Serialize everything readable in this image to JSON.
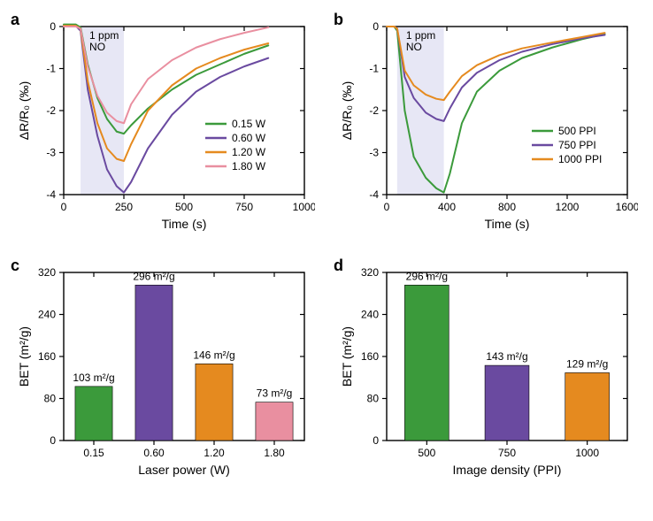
{
  "panel_a": {
    "label": "a",
    "type": "line",
    "shade_label": "1 ppm\nNO",
    "shade_x": [
      70,
      250
    ],
    "xlabel": "Time (s)",
    "ylabel": "ΔR/R₀ (‰)",
    "xlim": [
      0,
      1000
    ],
    "ylim": [
      -4,
      0
    ],
    "xticks": [
      0,
      250,
      500,
      750,
      1000
    ],
    "yticks": [
      -4,
      -3,
      -2,
      -1,
      0
    ],
    "series": [
      {
        "name": "0.15 W",
        "color": "#3b9a3b",
        "points": [
          [
            0,
            0.05
          ],
          [
            50,
            0.05
          ],
          [
            70,
            -0.02
          ],
          [
            100,
            -0.9
          ],
          [
            140,
            -1.7
          ],
          [
            180,
            -2.2
          ],
          [
            220,
            -2.5
          ],
          [
            250,
            -2.55
          ],
          [
            280,
            -2.35
          ],
          [
            350,
            -1.95
          ],
          [
            450,
            -1.5
          ],
          [
            550,
            -1.15
          ],
          [
            650,
            -0.9
          ],
          [
            750,
            -0.65
          ],
          [
            850,
            -0.45
          ]
        ]
      },
      {
        "name": "0.60 W",
        "color": "#6a4aa0",
        "points": [
          [
            0,
            0.02
          ],
          [
            50,
            0.02
          ],
          [
            70,
            -0.1
          ],
          [
            100,
            -1.5
          ],
          [
            140,
            -2.6
          ],
          [
            180,
            -3.4
          ],
          [
            220,
            -3.8
          ],
          [
            250,
            -3.95
          ],
          [
            280,
            -3.7
          ],
          [
            350,
            -2.9
          ],
          [
            450,
            -2.1
          ],
          [
            550,
            -1.55
          ],
          [
            650,
            -1.2
          ],
          [
            750,
            -0.95
          ],
          [
            850,
            -0.75
          ]
        ]
      },
      {
        "name": "1.20 W",
        "color": "#e58a1f",
        "points": [
          [
            0,
            0.02
          ],
          [
            50,
            0.02
          ],
          [
            70,
            -0.05
          ],
          [
            100,
            -1.3
          ],
          [
            140,
            -2.3
          ],
          [
            180,
            -2.9
          ],
          [
            220,
            -3.15
          ],
          [
            250,
            -3.2
          ],
          [
            280,
            -2.8
          ],
          [
            350,
            -2.0
          ],
          [
            450,
            -1.4
          ],
          [
            550,
            -1.0
          ],
          [
            650,
            -0.75
          ],
          [
            750,
            -0.55
          ],
          [
            850,
            -0.4
          ]
        ]
      },
      {
        "name": "1.80 W",
        "color": "#e98fa0",
        "points": [
          [
            0,
            0.0
          ],
          [
            50,
            0.0
          ],
          [
            70,
            -0.05
          ],
          [
            100,
            -0.95
          ],
          [
            140,
            -1.65
          ],
          [
            180,
            -2.05
          ],
          [
            220,
            -2.25
          ],
          [
            250,
            -2.3
          ],
          [
            280,
            -1.85
          ],
          [
            350,
            -1.25
          ],
          [
            450,
            -0.8
          ],
          [
            550,
            -0.5
          ],
          [
            650,
            -0.3
          ],
          [
            750,
            -0.15
          ],
          [
            850,
            -0.02
          ]
        ]
      }
    ],
    "legend_title": null
  },
  "panel_b": {
    "label": "b",
    "type": "line",
    "shade_label": "1 ppm\nNO",
    "shade_x": [
      70,
      380
    ],
    "xlabel": "Time (s)",
    "ylabel": "ΔR/R₀ (‰)",
    "xlim": [
      0,
      1600
    ],
    "ylim": [
      -4,
      0
    ],
    "xticks": [
      0,
      400,
      800,
      1200,
      1600
    ],
    "yticks": [
      -4,
      -3,
      -2,
      -1,
      0
    ],
    "series": [
      {
        "name": "500 PPI",
        "color": "#3b9a3b",
        "points": [
          [
            0,
            0.0
          ],
          [
            50,
            0.0
          ],
          [
            70,
            -0.1
          ],
          [
            120,
            -2.0
          ],
          [
            180,
            -3.1
          ],
          [
            260,
            -3.6
          ],
          [
            330,
            -3.85
          ],
          [
            380,
            -3.95
          ],
          [
            420,
            -3.5
          ],
          [
            500,
            -2.3
          ],
          [
            600,
            -1.55
          ],
          [
            750,
            -1.05
          ],
          [
            900,
            -0.75
          ],
          [
            1100,
            -0.5
          ],
          [
            1300,
            -0.3
          ],
          [
            1450,
            -0.18
          ]
        ]
      },
      {
        "name": "750 PPI",
        "color": "#6a4aa0",
        "points": [
          [
            0,
            0.0
          ],
          [
            50,
            0.0
          ],
          [
            70,
            -0.05
          ],
          [
            120,
            -1.2
          ],
          [
            180,
            -1.7
          ],
          [
            260,
            -2.05
          ],
          [
            330,
            -2.2
          ],
          [
            380,
            -2.25
          ],
          [
            420,
            -1.95
          ],
          [
            500,
            -1.45
          ],
          [
            600,
            -1.1
          ],
          [
            750,
            -0.8
          ],
          [
            900,
            -0.6
          ],
          [
            1100,
            -0.42
          ],
          [
            1300,
            -0.28
          ],
          [
            1450,
            -0.2
          ]
        ]
      },
      {
        "name": "1000 PPI",
        "color": "#e58a1f",
        "points": [
          [
            0,
            0.0
          ],
          [
            50,
            0.0
          ],
          [
            70,
            -0.05
          ],
          [
            120,
            -1.05
          ],
          [
            180,
            -1.4
          ],
          [
            260,
            -1.62
          ],
          [
            330,
            -1.72
          ],
          [
            380,
            -1.75
          ],
          [
            420,
            -1.55
          ],
          [
            500,
            -1.18
          ],
          [
            600,
            -0.92
          ],
          [
            750,
            -0.68
          ],
          [
            900,
            -0.52
          ],
          [
            1100,
            -0.38
          ],
          [
            1300,
            -0.25
          ],
          [
            1450,
            -0.15
          ]
        ]
      }
    ]
  },
  "panel_c": {
    "label": "c",
    "type": "bar",
    "xlabel": "Laser power (W)",
    "ylabel": "BET (m²/g)",
    "ylim": [
      0,
      320
    ],
    "yticks": [
      0,
      80,
      160,
      240,
      320
    ],
    "categories": [
      "0.15",
      "0.60",
      "1.20",
      "1.80"
    ],
    "values": [
      103,
      296,
      146,
      73
    ],
    "value_labels": [
      "103 m²/g",
      "296 m²/g",
      "146 m²/g",
      "73 m²/g"
    ],
    "bar_colors": [
      "#3b9a3b",
      "#6a4aa0",
      "#e58a1f",
      "#e98fa0"
    ],
    "bar_width": 0.62
  },
  "panel_d": {
    "label": "d",
    "type": "bar",
    "xlabel": "Image density (PPI)",
    "ylabel": "BET (m²/g)",
    "ylim": [
      0,
      320
    ],
    "yticks": [
      0,
      80,
      160,
      240,
      320
    ],
    "categories": [
      "500",
      "750",
      "1000"
    ],
    "values": [
      296,
      143,
      129
    ],
    "value_labels": [
      "296 m²/g",
      "143 m²/g",
      "129 m²/g"
    ],
    "bar_colors": [
      "#3b9a3b",
      "#6a4aa0",
      "#e58a1f"
    ],
    "bar_width": 0.55
  },
  "line_width": 2.0,
  "background": "#ffffff"
}
